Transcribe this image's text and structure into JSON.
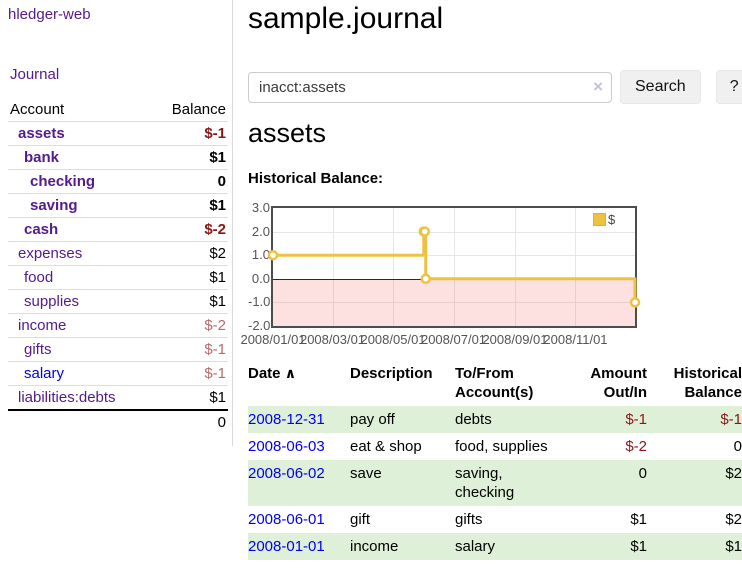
{
  "sidebar": {
    "brand": "hledger-web",
    "journal_label": "Journal",
    "accounts_table": {
      "headers": [
        "Account",
        "Balance"
      ],
      "rows": [
        {
          "name": "assets",
          "balance": "$-1",
          "indent": 1,
          "in_account": true
        },
        {
          "name": "bank",
          "balance": "$1",
          "indent": 2,
          "in_account": true
        },
        {
          "name": "checking",
          "balance": "0",
          "indent": 3,
          "in_account": true
        },
        {
          "name": "saving",
          "balance": "$1",
          "indent": 3,
          "in_account": true
        },
        {
          "name": "cash",
          "balance": "$-2",
          "indent": 2,
          "in_account": true
        },
        {
          "name": "expenses",
          "balance": "$2",
          "indent": 1,
          "in_account": false
        },
        {
          "name": "food",
          "balance": "$1",
          "indent": 2,
          "in_account": false
        },
        {
          "name": "supplies",
          "balance": "$1",
          "indent": 2,
          "in_account": false
        },
        {
          "name": "income",
          "balance": "$-2",
          "indent": 1,
          "in_account": false
        },
        {
          "name": "gifts",
          "balance": "$-1",
          "indent": 2,
          "in_account": false
        },
        {
          "name": "salary",
          "balance": "$-1",
          "indent": 2,
          "in_account": false,
          "link_state": "unvisited"
        },
        {
          "name": "liabilities:debts",
          "balance": "$1",
          "indent": 1,
          "in_account": false
        }
      ],
      "total": "0"
    }
  },
  "main": {
    "title": "sample.journal",
    "search": {
      "value": "inacct:assets",
      "clear_icon": "×",
      "button_label": "Search",
      "help_label": "?"
    },
    "account_heading": "assets",
    "chart_label": "Historical Balance:",
    "register": {
      "headers": [
        "Date",
        "Description",
        "To/From Account(s)",
        "Amount Out/In",
        "Historical Balance"
      ],
      "sort_icon": "∧",
      "rows": [
        {
          "date": "2008-12-31",
          "description": "pay off",
          "accounts": "debts",
          "amount": "$-1",
          "balance": "$-1"
        },
        {
          "date": "2008-06-03",
          "description": "eat & shop",
          "accounts": "food, supplies",
          "amount": "$-2",
          "balance": "0"
        },
        {
          "date": "2008-06-02",
          "description": "save",
          "accounts": "saving, checking",
          "amount": "0",
          "balance": "$2"
        },
        {
          "date": "2008-06-01",
          "description": "gift",
          "accounts": "gifts",
          "amount": "$1",
          "balance": "$2"
        },
        {
          "date": "2008-01-01",
          "description": "income",
          "accounts": "salary",
          "amount": "$1",
          "balance": "$1"
        }
      ]
    }
  },
  "chart_data": {
    "type": "line",
    "step": true,
    "title": "Historical Balance:",
    "series": [
      {
        "name": "$",
        "color": "#EDC240",
        "points": [
          {
            "date": "2008-01-01",
            "value": 1
          },
          {
            "date": "2008-06-01",
            "value": 2
          },
          {
            "date": "2008-06-02",
            "value": 2
          },
          {
            "date": "2008-06-03",
            "value": 0
          },
          {
            "date": "2008-12-31",
            "value": -1
          }
        ]
      }
    ],
    "xlim": [
      "2008-01-01",
      "2008-12-31"
    ],
    "ylim": [
      -2,
      3
    ],
    "y_ticks": [
      "3.0",
      "2.0",
      "1.0",
      "0.0",
      "-1.0",
      "-2.0"
    ],
    "x_ticks": [
      "2008/01/01",
      "2008/03/01",
      "2008/05/01",
      "2008/07/01",
      "2008/09/01",
      "2008/11/01"
    ],
    "grid": true,
    "legend_position": "top-right",
    "negative_region_color": "rgba(244,114,114,0.22)",
    "zero_line_color": "#8b0000",
    "border_color": "#4d4d4d"
  },
  "colors": {
    "link_visited": "#551A8B",
    "link_unvisited": "#0000EE",
    "negative_strong": "#8B1616",
    "negative_soft": "#B46C6C",
    "row_alt_green": "#dff0d8",
    "series_yellow": "#EDC240"
  }
}
